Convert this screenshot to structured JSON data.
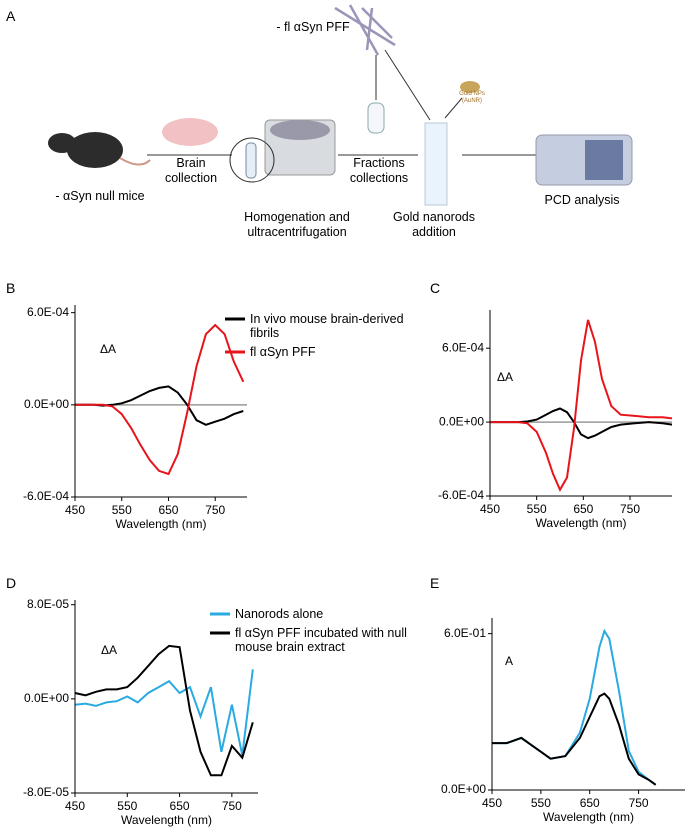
{
  "panel_a": {
    "label": "A",
    "pff": "- fl αSyn  PFF",
    "mice": "- αSyn null mice",
    "brain": "Brain collection",
    "homog": "Homogenation and ultracentrifugation",
    "fractions": "Fractions collections",
    "gold": "Gold nanorods addition",
    "gold_np": "Gold NPs (AuNR)",
    "pcd": "PCD analysis"
  },
  "chart_data": [
    {
      "type": "line",
      "label": "B",
      "xlabel": "Wavelength (nm)",
      "ylabel": "ΔA",
      "zero_line": true,
      "x": [
        450,
        470,
        490,
        510,
        530,
        550,
        570,
        590,
        610,
        630,
        650,
        670,
        690,
        710,
        730,
        750,
        770,
        790,
        810
      ],
      "series": [
        {
          "name": "In vivo mouse brain-derived fibrils",
          "color": "#000000",
          "values": [
            0,
            0,
            0,
            -5e-06,
            0,
            1e-05,
            3e-05,
            6e-05,
            9e-05,
            0.00011,
            0.00012,
            8e-05,
            0,
            -0.0001,
            -0.00013,
            -0.00011,
            -9e-05,
            -6e-05,
            -4e-05
          ]
        },
        {
          "name": "fl αSyn PFF",
          "color": "#e8141b",
          "values": [
            0,
            0,
            0,
            0,
            -1e-05,
            -6e-05,
            -0.00015,
            -0.00026,
            -0.00036,
            -0.00043,
            -0.00045,
            -0.00032,
            -5e-05,
            0.00025,
            0.00046,
            0.00052,
            0.00046,
            0.00028,
            0.00015
          ]
        }
      ],
      "xlim": [
        450,
        818
      ],
      "xticks": [
        450,
        550,
        650,
        750
      ],
      "ylim": [
        -0.0006,
        0.00065
      ],
      "yticks": [
        {
          "value": -0.0006,
          "label": "-6.0E-04"
        },
        {
          "value": 0,
          "label": "0.0E+00"
        },
        {
          "value": 0.0006,
          "label": "6.0E-04"
        }
      ]
    },
    {
      "type": "line",
      "label": "C",
      "xlabel": "Wavelength (nm)",
      "ylabel": "ΔA",
      "zero_line": true,
      "x": [
        450,
        480,
        510,
        530,
        550,
        570,
        585,
        600,
        615,
        630,
        645,
        660,
        675,
        690,
        710,
        730,
        760,
        790,
        820,
        840
      ],
      "series": [
        {
          "color": "#000000",
          "values": [
            0,
            0,
            0,
            5e-06,
            2e-05,
            6e-05,
            9e-05,
            0.00011,
            8e-05,
            0,
            -0.0001,
            -0.00013,
            -0.00011,
            -8e-05,
            -4e-05,
            -2e-05,
            -1e-05,
            0,
            -1e-05,
            -2e-05
          ]
        },
        {
          "color": "#e8141b",
          "values": [
            0,
            0,
            0,
            -1e-05,
            -8e-05,
            -0.00025,
            -0.00042,
            -0.00055,
            -0.00045,
            -5e-05,
            0.0005,
            0.00083,
            0.00065,
            0.00035,
            0.00013,
            6e-05,
            5e-05,
            4e-05,
            4e-05,
            3e-05
          ]
        }
      ],
      "xlim": [
        450,
        840
      ],
      "xticks": [
        450,
        550,
        650,
        750
      ],
      "ylim": [
        -0.0006,
        0.00091
      ],
      "yticks": [
        {
          "value": -0.0006,
          "label": "-6.0E-04"
        },
        {
          "value": 0,
          "label": "0.0E+00"
        },
        {
          "value": 0.0006,
          "label": "6.0E-04"
        }
      ]
    },
    {
      "type": "line",
      "label": "D",
      "xlabel": "Wavelength (nm)",
      "ylabel": "ΔA",
      "zero_line": false,
      "x": [
        450,
        470,
        490,
        510,
        530,
        550,
        570,
        590,
        610,
        630,
        650,
        670,
        690,
        710,
        730,
        750,
        770,
        790
      ],
      "series": [
        {
          "name": "Nanorods alone",
          "color": "#29abe2",
          "values": [
            -5e-06,
            -4e-06,
            -6e-06,
            -3e-06,
            -2e-06,
            2e-06,
            -3e-06,
            5e-06,
            1e-05,
            1.5e-05,
            5e-06,
            1e-05,
            -1.5e-05,
            1e-05,
            -4.5e-05,
            -5e-06,
            -4.8e-05,
            2.5e-05
          ]
        },
        {
          "name": "fl αSyn PFF incubated with null mouse brain extract",
          "color": "#000000",
          "values": [
            5e-06,
            3e-06,
            6e-06,
            8e-06,
            8e-06,
            1e-05,
            1.8e-05,
            2.8e-05,
            3.8e-05,
            4.5e-05,
            4.4e-05,
            -1e-05,
            -4.5e-05,
            -6.5e-05,
            -6.5e-05,
            -4e-05,
            -5e-05,
            -2e-05
          ]
        }
      ],
      "xlim": [
        450,
        800
      ],
      "xticks": [
        450,
        550,
        650,
        750
      ],
      "ylim": [
        -8e-05,
        8.4e-05
      ],
      "yticks": [
        {
          "value": -8e-05,
          "label": "-8.0E-05"
        },
        {
          "value": 0,
          "label": "0.0E+00"
        },
        {
          "value": 8e-05,
          "label": "8.0E-05"
        }
      ]
    },
    {
      "type": "line",
      "label": "E",
      "xlabel": "Wavelength (nm)",
      "ylabel": "A",
      "zero_line": false,
      "x": [
        450,
        480,
        510,
        540,
        570,
        600,
        630,
        650,
        670,
        680,
        690,
        710,
        730,
        750,
        770,
        785
      ],
      "series": [
        {
          "color": "#29abe2",
          "values": [
            0.18,
            0.18,
            0.2,
            0.16,
            0.12,
            0.13,
            0.22,
            0.35,
            0.55,
            0.61,
            0.58,
            0.38,
            0.15,
            0.07,
            0.04,
            0.02
          ]
        },
        {
          "color": "#000000",
          "values": [
            0.18,
            0.18,
            0.2,
            0.16,
            0.12,
            0.13,
            0.2,
            0.28,
            0.36,
            0.37,
            0.35,
            0.25,
            0.12,
            0.06,
            0.04,
            0.02
          ]
        }
      ],
      "xlim": [
        450,
        845
      ],
      "xticks": [
        450,
        550,
        650,
        750
      ],
      "ylim": [
        0,
        0.66
      ],
      "yticks": [
        {
          "value": 0,
          "label": "0.0E+00"
        },
        {
          "value": 0.6,
          "label": "6.0E-01"
        }
      ]
    }
  ]
}
